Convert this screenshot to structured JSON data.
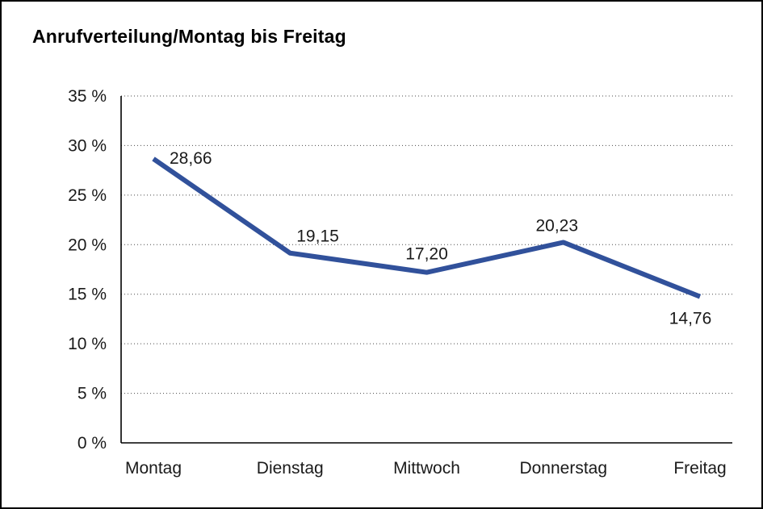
{
  "chart_data": {
    "type": "line",
    "title": "Anrufverteilung/Montag bis Freitag",
    "categories": [
      "Montag",
      "Dienstag",
      "Mittwoch",
      "Donnerstag",
      "Freitag"
    ],
    "values": [
      28.66,
      19.15,
      17.2,
      20.23,
      14.76
    ],
    "value_labels": [
      "28,66",
      "19,15",
      "17,20",
      "20,23",
      "14,76"
    ],
    "xlabel": "",
    "ylabel": "",
    "ylim": [
      0,
      35
    ],
    "y_tick_step": 5,
    "y_tick_suffix": " %",
    "grid": "horizontal-dotted",
    "legend": "none",
    "line_color": "#31519b",
    "grid_color": "#4a4a4a",
    "axis_color": "#000000",
    "text_color": "#1a1a1a",
    "background": "#ffffff",
    "border_color": "#000000"
  }
}
